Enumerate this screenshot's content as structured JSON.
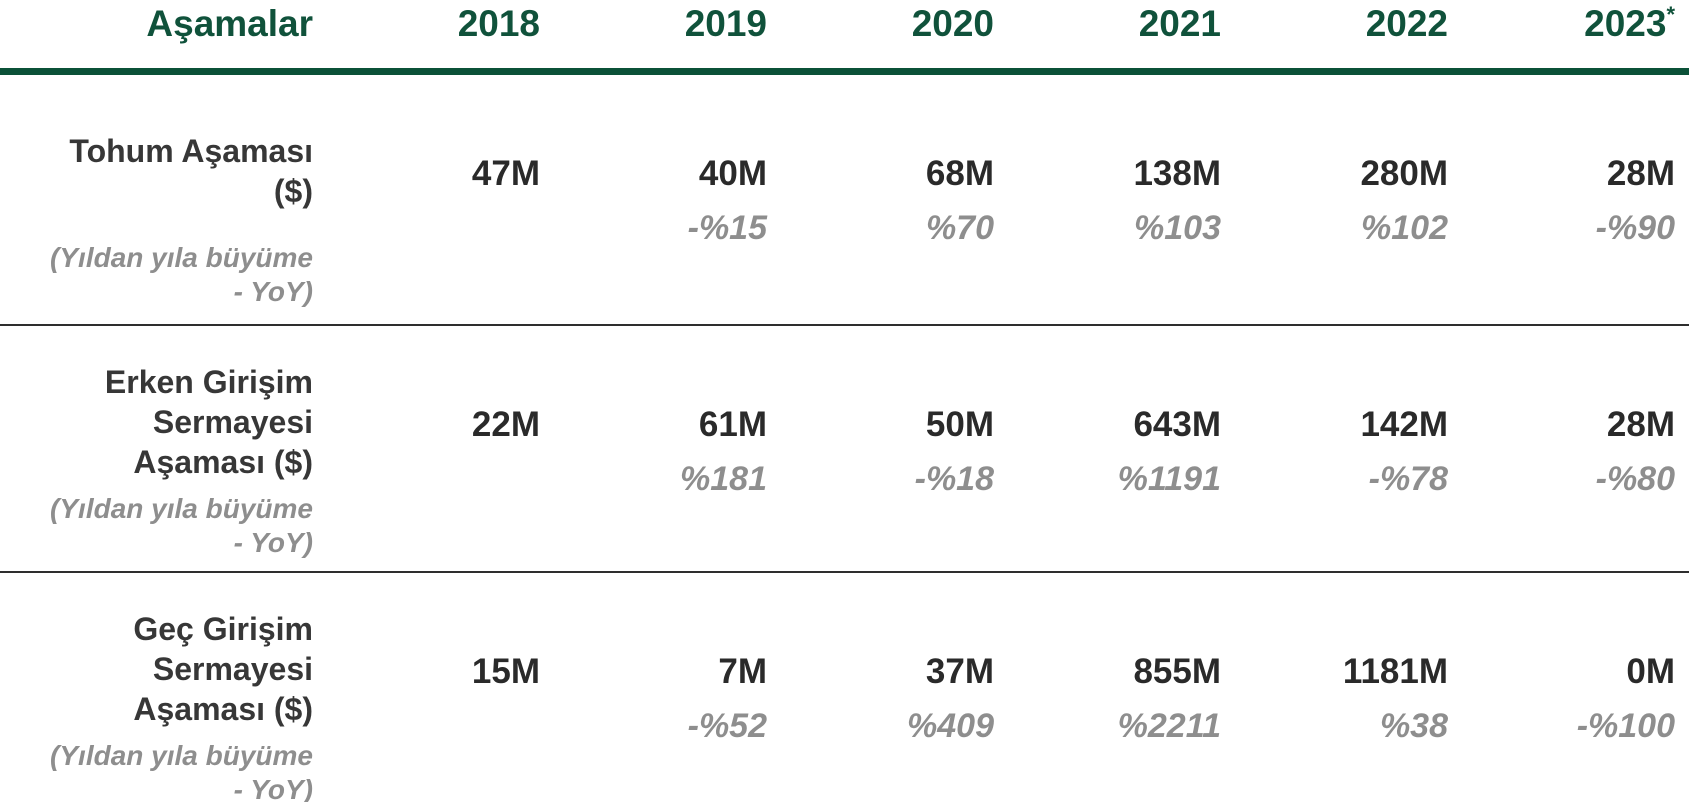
{
  "table": {
    "header": {
      "stage_label": "Aşamalar",
      "years": [
        {
          "label": "2018",
          "mark": ""
        },
        {
          "label": "2019",
          "mark": ""
        },
        {
          "label": "2020",
          "mark": ""
        },
        {
          "label": "2021",
          "mark": ""
        },
        {
          "label": "2022",
          "mark": ""
        },
        {
          "label": "2023",
          "mark": "*"
        }
      ]
    },
    "rows": [
      {
        "label_lines": [
          "Tohum Aşaması",
          "($)"
        ],
        "caption_lines": [
          "(Yıldan yıla büyüme",
          "- YoY)"
        ],
        "values": [
          "47M",
          "40M",
          "68M",
          "138M",
          "280M",
          "28M"
        ],
        "yoy": [
          "",
          "-%15",
          "%70",
          "%103",
          "%102",
          "-%90"
        ]
      },
      {
        "label_lines": [
          "Erken Girişim",
          "Sermayesi",
          "Aşaması ($)"
        ],
        "caption_lines": [
          "(Yıldan yıla büyüme",
          "- YoY)"
        ],
        "values": [
          "22M",
          "61M",
          "50M",
          "643M",
          "142M",
          "28M"
        ],
        "yoy": [
          "",
          "%181",
          "-%18",
          "%1191",
          "-%78",
          "-%80"
        ]
      },
      {
        "label_lines": [
          "Geç Girişim",
          "Sermayesi",
          "Aşaması ($)"
        ],
        "caption_lines": [
          "(Yıldan yıla büyüme",
          "- YoY)"
        ],
        "values": [
          "15M",
          "7M",
          "37M",
          "855M",
          "1181M",
          "0M"
        ],
        "yoy": [
          "",
          "-%52",
          "%409",
          "%2211",
          "%38",
          "-%100"
        ]
      }
    ]
  },
  "colors": {
    "header_green": "#10523b",
    "rule_green": "#0b5138",
    "value_dark": "#2a2a2a",
    "label_dark": "#373737",
    "muted_gray": "#8e8e8e",
    "divider": "#2e2e2e",
    "background": "#ffffff"
  },
  "chart_data": {
    "type": "table",
    "title": "Aşamalar",
    "columns": [
      "Aşamalar",
      "2018",
      "2019",
      "2020",
      "2021",
      "2022",
      "2023*"
    ],
    "rows": [
      {
        "stage": "Tohum Aşaması ($)",
        "note": "(Yıldan yıla büyüme - YoY)",
        "amounts": [
          "47M",
          "40M",
          "68M",
          "138M",
          "280M",
          "28M"
        ],
        "yoy_growth": [
          null,
          "-%15",
          "%70",
          "%103",
          "%102",
          "-%90"
        ]
      },
      {
        "stage": "Erken Girişim Sermayesi Aşaması ($)",
        "note": "(Yıldan yıla büyüme - YoY)",
        "amounts": [
          "22M",
          "61M",
          "50M",
          "643M",
          "142M",
          "28M"
        ],
        "yoy_growth": [
          null,
          "%181",
          "-%18",
          "%1191",
          "-%78",
          "-%80"
        ]
      },
      {
        "stage": "Geç Girişim Sermayesi Aşaması ($)",
        "note": "(Yıldan yıla büyüme - YoY)",
        "amounts": [
          "15M",
          "7M",
          "37M",
          "855M",
          "1181M",
          "0M"
        ],
        "yoy_growth": [
          null,
          "-%52",
          "%409",
          "%2211",
          "%38",
          "-%100"
        ]
      }
    ],
    "layout": {
      "label_column_alignment": "right",
      "value_column_alignment": "right",
      "header_rule": "thick green",
      "row_dividers": "thin dark"
    }
  }
}
